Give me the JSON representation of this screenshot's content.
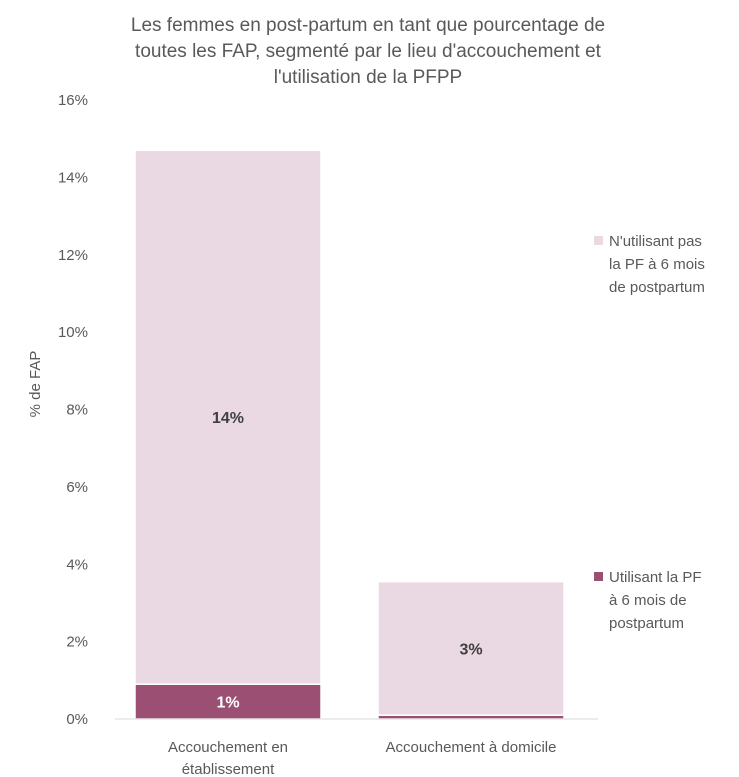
{
  "chart_data": {
    "type": "bar",
    "stacked": true,
    "title": [
      "Les femmes en post-partum en tant que pourcentage de",
      "toutes les FAP, segmenté par le lieu d'accouchement et",
      "l'utilisation de la PFPP"
    ],
    "xlabel": "",
    "ylabel": "% de FAP",
    "ylim": [
      0,
      16
    ],
    "yticks": [
      0,
      2,
      4,
      6,
      8,
      10,
      12,
      14,
      16
    ],
    "ytick_labels": [
      "0%",
      "2%",
      "4%",
      "6%",
      "8%",
      "10%",
      "12%",
      "14%",
      "16%"
    ],
    "categories": [
      [
        "Accouchement en",
        "établissement"
      ],
      [
        "Accouchement à domicile"
      ]
    ],
    "grid": false,
    "legend_position": "right",
    "series": [
      {
        "name": [
          "Utilisant la PF",
          "à 6 mois de",
          "postpartum"
        ],
        "color": "#9b4f73",
        "values": [
          0.9,
          0.1
        ],
        "data_labels": [
          "1%",
          ""
        ]
      },
      {
        "name": [
          "N'utilisant pas",
          "la PF à 6 mois",
          "de postpartum"
        ],
        "color": "#ead9e2",
        "values": [
          13.8,
          3.45
        ],
        "data_labels": [
          "14%",
          "3%"
        ]
      }
    ]
  }
}
